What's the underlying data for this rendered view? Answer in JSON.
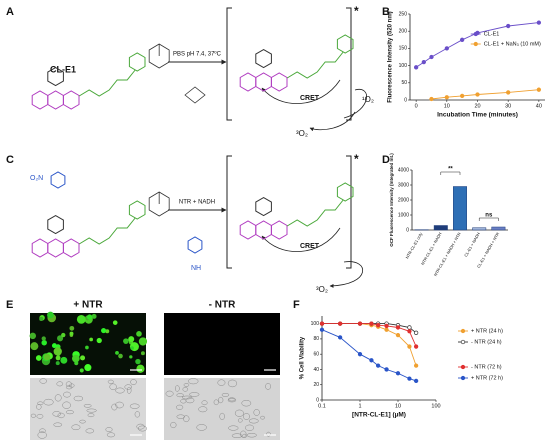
{
  "panel_labels": [
    "A",
    "B",
    "C",
    "D",
    "E",
    "F"
  ],
  "scheme_a": {
    "compound": "CL-E1",
    "condition": "PBS pH 7.4, 37ºC",
    "transfer": "CRET",
    "singlet_oxygen": "¹O₂",
    "triplet_oxygen": "³O₂",
    "excited": "*"
  },
  "scheme_c": {
    "condition": "NTR + NADH",
    "transfer": "CRET",
    "nitro_group": "O₂N",
    "amine": "NH",
    "triplet_oxygen": "³O₂",
    "excited": "*"
  },
  "imaging": {
    "with_ntr": "+ NTR",
    "without_ntr": "- NTR"
  },
  "chart_data": [
    {
      "type": "line",
      "x_label": "Incubation Time (minutes)",
      "y_label": "Fluorescence Intensity (520 nm)",
      "xlim": [
        -2,
        42
      ],
      "xticks": [
        0,
        10,
        20,
        30,
        40
      ],
      "ylim": [
        0,
        250
      ],
      "yticks": [
        0,
        50,
        100,
        150,
        200,
        250
      ],
      "legend": "inside",
      "series": [
        {
          "name": "CL-E1",
          "color": "#6a4fc9",
          "x": [
            0,
            2.5,
            5,
            10,
            15,
            20,
            30,
            40
          ],
          "values": [
            95,
            110,
            125,
            150,
            175,
            195,
            215,
            225
          ]
        },
        {
          "name": "CL-E1 + NaN₃ (10 mM)",
          "color": "#f0a030",
          "x": [
            5,
            10,
            15,
            20,
            30,
            40
          ],
          "values": [
            3,
            8,
            12,
            16,
            22,
            30
          ]
        }
      ]
    },
    {
      "type": "bar",
      "y_label": "OCF Fluorescence Intensity (Integrated Int.)",
      "categories": [
        "NTR-CL-E1 only",
        "NTR-CL-E1 + NADH",
        "NTR-CL-E1 + NADH + NTR",
        "CL-E1 + NADH",
        "CL-E1 + NADH + NTR"
      ],
      "values": [
        20,
        300,
        2900,
        150,
        200
      ],
      "colors": [
        "#ffffff",
        "#1f3d7a",
        "#2e6fb5",
        "#9fb3d9",
        "#6a7fc4"
      ],
      "ylim": [
        0,
        4000
      ],
      "yticks": [
        0,
        1000,
        2000,
        3000,
        4000
      ],
      "annotations": [
        "**",
        "ns"
      ]
    },
    {
      "type": "line",
      "x_label": "[NTR-CL-E1] (µM)",
      "y_label": "% Cell Viability",
      "log_x": true,
      "xlim": [
        0.1,
        100
      ],
      "xticks": [
        0.1,
        1,
        10,
        100
      ],
      "ylim": [
        0,
        110
      ],
      "yticks": [
        0,
        20,
        40,
        60,
        80,
        100
      ],
      "legend": "right",
      "x": [
        0.1,
        0.3,
        1,
        2,
        3,
        5,
        10,
        20,
        30
      ],
      "series": [
        {
          "name": "+ NTR (24 h)",
          "color": "#f0a030",
          "marker": "filled",
          "values": [
            100,
            100,
            100,
            98,
            96,
            92,
            85,
            70,
            45
          ]
        },
        {
          "name": "- NTR (24 h)",
          "color": "#333333",
          "marker": "open",
          "values": [
            100,
            100,
            100,
            100,
            100,
            100,
            98,
            95,
            88
          ]
        },
        {
          "name": "- NTR (72 h)",
          "color": "#e03030",
          "marker": "filled",
          "values": [
            100,
            100,
            100,
            100,
            98,
            97,
            95,
            90,
            70
          ]
        },
        {
          "name": "+ NTR (72 h)",
          "color": "#2a55c8",
          "marker": "filled",
          "values": [
            92,
            82,
            60,
            52,
            45,
            40,
            35,
            28,
            25
          ]
        }
      ]
    }
  ]
}
